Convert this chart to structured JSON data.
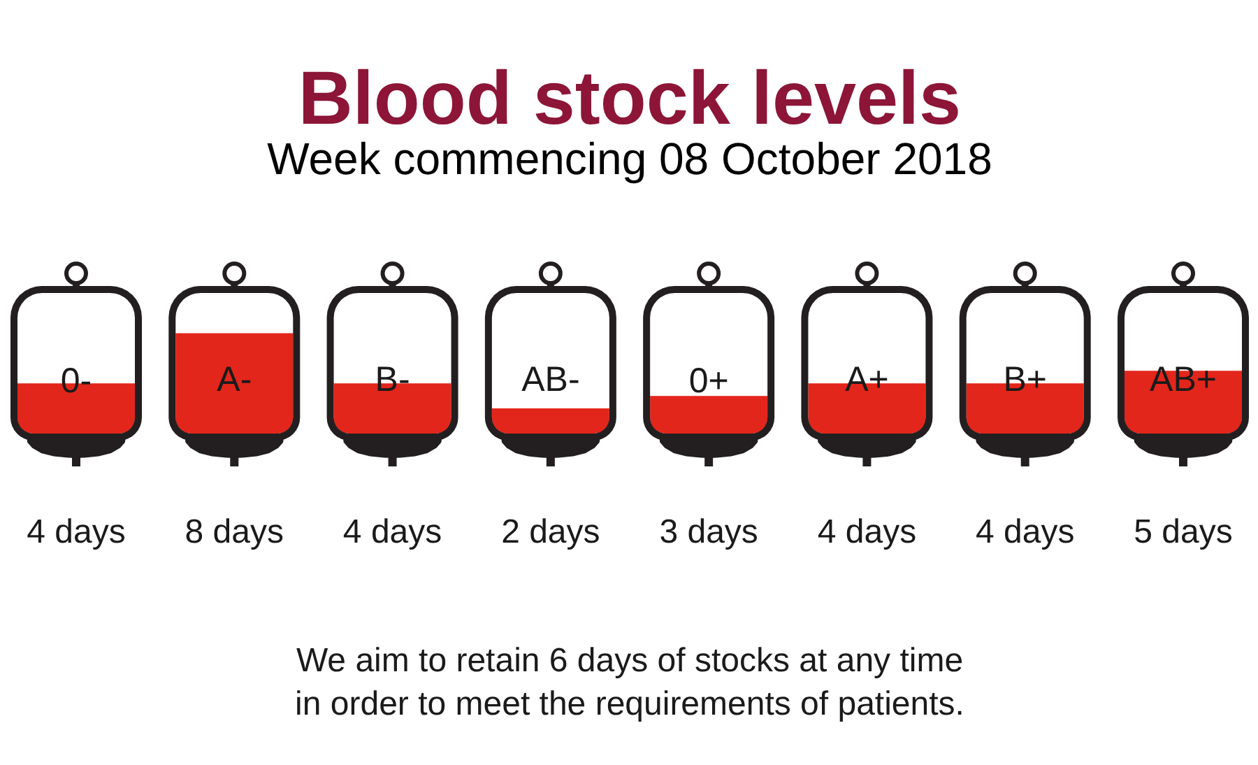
{
  "chart_data": {
    "type": "bar",
    "title": "Blood stock levels",
    "subtitle": "Week commencing 08 October 2018",
    "categories": [
      "0-",
      "A-",
      "B-",
      "AB-",
      "0+",
      "A+",
      "B+",
      "AB+"
    ],
    "values": [
      4,
      8,
      4,
      2,
      3,
      4,
      4,
      5
    ],
    "value_labels": [
      "4 days",
      "8 days",
      "4 days",
      "2 days",
      "3 days",
      "4 days",
      "4 days",
      "5 days"
    ],
    "color": "#e3261b",
    "annotations": [
      "We aim to retain 6 days of stocks at any time\nin order to meet the requirements of patients."
    ]
  }
}
